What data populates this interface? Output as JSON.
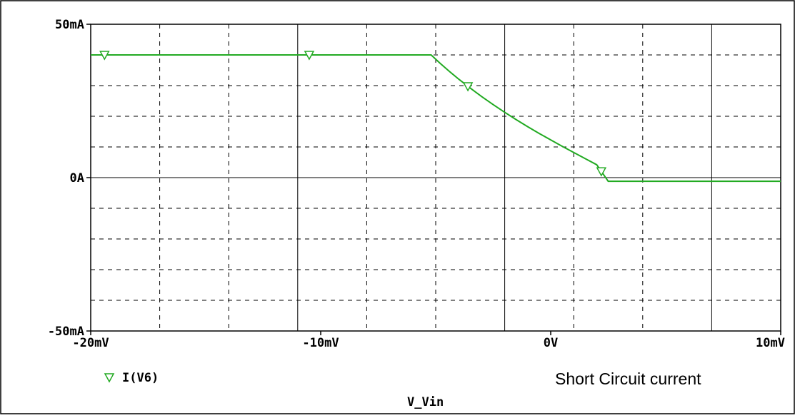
{
  "chart_data": {
    "type": "line",
    "xlabel": "V_Vin",
    "ylabel": "",
    "xlim": [
      -20,
      10
    ],
    "ylim": [
      -50,
      50
    ],
    "x_unit": "mV",
    "y_unit": "mA",
    "x_ticks": [
      {
        "value": -20,
        "label": "-20mV"
      },
      {
        "value": -10,
        "label": "-10mV"
      },
      {
        "value": 0,
        "label": "0V"
      },
      {
        "value": 10,
        "label": "10mV"
      }
    ],
    "y_ticks": [
      {
        "value": 50,
        "label": "50mA"
      },
      {
        "value": 0,
        "label": "0A"
      },
      {
        "value": -50,
        "label": "-50mA"
      }
    ],
    "grid": true,
    "legend_position": "bottom-left",
    "series": [
      {
        "name": "I(V6)",
        "color": "#22aa22",
        "marker": "triangle-down",
        "x": [
          -20,
          -5.2,
          -4.8,
          -4.4,
          -4.0,
          -3.5,
          -3.0,
          -2.5,
          -2.0,
          -1.5,
          -1.0,
          -0.5,
          0.0,
          0.5,
          1.0,
          1.5,
          2.0,
          2.5,
          10
        ],
        "y": [
          40,
          40,
          37.2,
          34.6,
          32.1,
          29.2,
          26.4,
          23.8,
          21.3,
          18.9,
          16.6,
          14.4,
          12.3,
          10.2,
          8.2,
          6.2,
          4.2,
          -1.2,
          -1.2
        ],
        "marker_x": [
          -19.4,
          -10.5,
          -3.6,
          2.2
        ]
      }
    ],
    "annotation": "Short Circuit current"
  }
}
